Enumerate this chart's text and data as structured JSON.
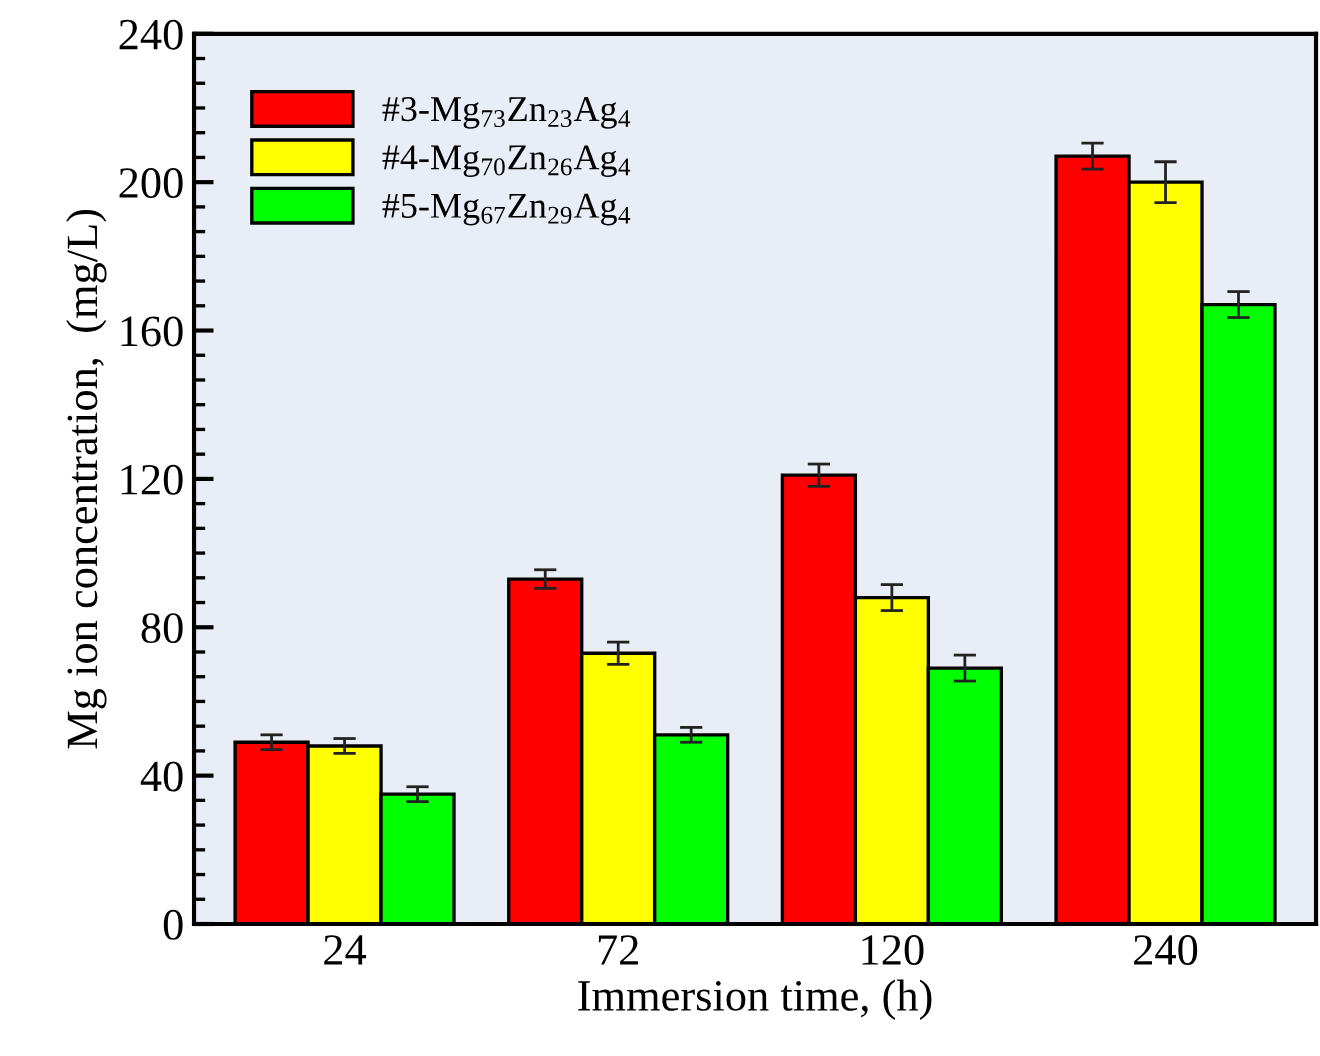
{
  "chart_data": {
    "type": "bar",
    "xlabel": "Immersion time, (h)",
    "ylabel": "Mg ion concentration,  (mg/L)",
    "categories": [
      "24",
      "72",
      "120",
      "240"
    ],
    "series": [
      {
        "name": "#3-Mg$_{73}$Zn$_{23}$Ag$_{4}$",
        "color": "#ff0000",
        "values": [
          49,
          93,
          121,
          207
        ],
        "errors": [
          2,
          2.5,
          3,
          3.5
        ]
      },
      {
        "name": "#4-Mg$_{70}$Zn$_{26}$Ag$_{4}$",
        "color": "#ffff00",
        "values": [
          48,
          73,
          88,
          200
        ],
        "errors": [
          2,
          3,
          3.5,
          5.5
        ]
      },
      {
        "name": "#5-Mg$_{67}$Zn$_{29}$Ag$_{4}$",
        "color": "#00ff00",
        "values": [
          35,
          51,
          69,
          167
        ],
        "errors": [
          2,
          2,
          3.5,
          3.5
        ]
      }
    ],
    "ylim": [
      0,
      240
    ],
    "yticks": [
      0,
      40,
      80,
      120,
      160,
      200,
      240
    ],
    "grid": false,
    "legend": "top left"
  }
}
